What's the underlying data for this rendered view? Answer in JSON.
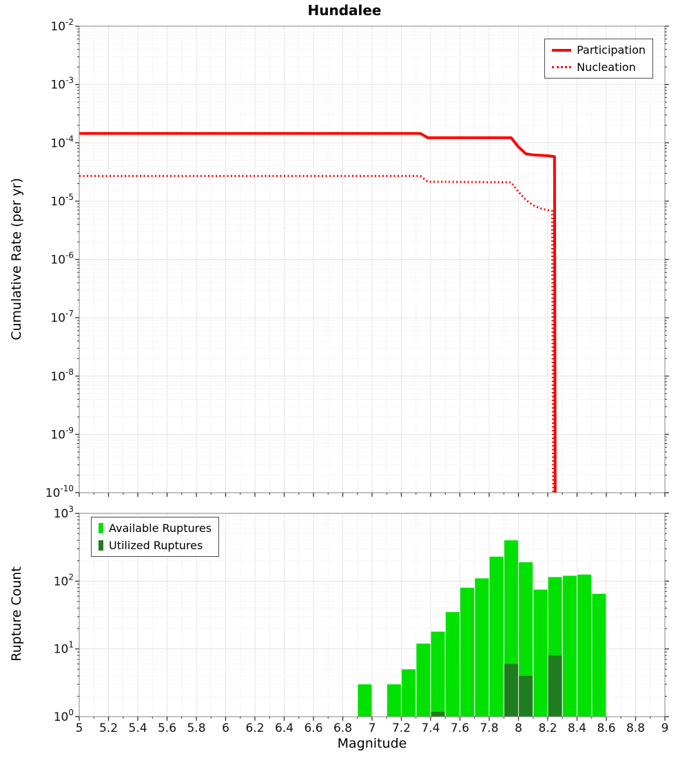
{
  "title": "Hundalee",
  "axes": {
    "x_label": "Magnitude",
    "x_tick_labels": [
      "5",
      "5.2",
      "5.4",
      "5.6",
      "5.8",
      "6",
      "6.2",
      "6.4",
      "6.6",
      "6.8",
      "7",
      "7.2",
      "7.4",
      "7.6",
      "7.8",
      "8",
      "8.2",
      "8.4",
      "8.6",
      "8.8",
      "9"
    ]
  },
  "chart_data": [
    {
      "type": "line",
      "title": "Hundalee",
      "xlabel": "Magnitude",
      "ylabel": "Cumulative Rate (per yr)",
      "x_range": [
        5,
        9
      ],
      "y_scale": "log",
      "y_range_exponents": [
        -10,
        -2
      ],
      "y_tick_exponents": [
        -2,
        -3,
        -4,
        -5,
        -6,
        -7,
        -8,
        -9,
        -10
      ],
      "grid": true,
      "legend_position": "top-right",
      "series": [
        {
          "name": "Participation",
          "style": "solid",
          "color": "#ff0000",
          "points": [
            [
              5.0,
              0.000145
            ],
            [
              7.33,
              0.000145
            ],
            [
              7.38,
              0.000122
            ],
            [
              7.95,
              0.000122
            ],
            [
              8.0,
              8.5e-05
            ],
            [
              8.05,
              6.5e-05
            ],
            [
              8.1,
              6.2e-05
            ],
            [
              8.2,
              6e-05
            ],
            [
              8.246,
              5.8e-05
            ],
            [
              8.251,
              6e-11
            ]
          ]
        },
        {
          "name": "Nucleation",
          "style": "dotted",
          "color": "#ff0000",
          "points": [
            [
              5.0,
              2.7e-05
            ],
            [
              7.33,
              2.7e-05
            ],
            [
              7.38,
              2.15e-05
            ],
            [
              7.95,
              2.1e-05
            ],
            [
              8.0,
              1.45e-05
            ],
            [
              8.05,
              1.05e-05
            ],
            [
              8.1,
              8.5e-06
            ],
            [
              8.15,
              7.5e-06
            ],
            [
              8.2,
              7e-06
            ],
            [
              8.23,
              6.8e-06
            ],
            [
              8.237,
              6e-11
            ]
          ]
        }
      ]
    },
    {
      "type": "bar",
      "title": "",
      "xlabel": "Magnitude",
      "ylabel": "Rupture Count",
      "x_range": [
        5,
        9
      ],
      "y_scale": "log",
      "y_range_exponents": [
        0,
        3
      ],
      "y_tick_exponents": [
        3,
        2,
        1,
        0
      ],
      "grid": true,
      "legend_position": "top-left",
      "bin_width": 0.1,
      "series": [
        {
          "name": "Available Ruptures",
          "color": "#00e100",
          "points": [
            [
              6.95,
              3
            ],
            [
              7.15,
              3
            ],
            [
              7.25,
              5
            ],
            [
              7.35,
              12
            ],
            [
              7.45,
              18
            ],
            [
              7.55,
              35
            ],
            [
              7.65,
              80
            ],
            [
              7.75,
              110
            ],
            [
              7.85,
              230
            ],
            [
              7.95,
              400
            ],
            [
              8.05,
              190
            ],
            [
              8.15,
              75
            ],
            [
              8.25,
              115
            ],
            [
              8.35,
              120
            ],
            [
              8.45,
              125
            ],
            [
              8.55,
              65
            ]
          ]
        },
        {
          "name": "Utilized Ruptures",
          "color": "#1e7d1e",
          "points": [
            [
              7.45,
              1
            ],
            [
              7.95,
              6
            ],
            [
              8.05,
              4
            ],
            [
              8.25,
              8
            ]
          ]
        }
      ]
    }
  ]
}
